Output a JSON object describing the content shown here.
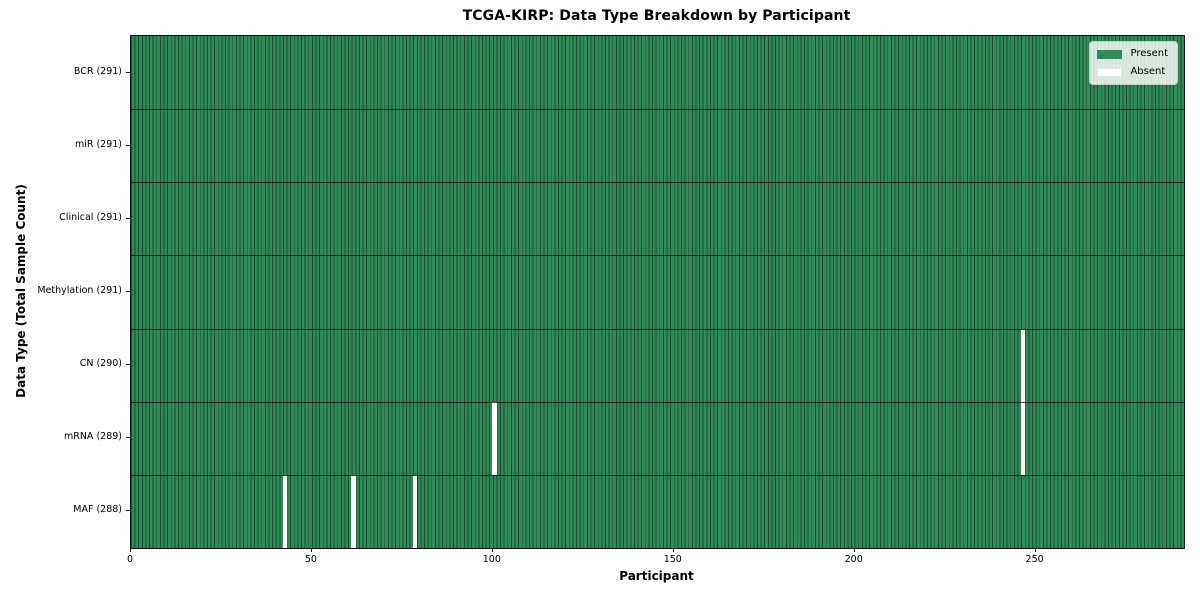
{
  "chart_data": {
    "type": "heatmap",
    "title": "TCGA-KIRP: Data Type Breakdown by Participant",
    "xlabel": "Participant",
    "ylabel": "Data Type (Total Sample Count)",
    "n_participants": 291,
    "x_ticks": [
      0,
      50,
      100,
      150,
      200,
      250
    ],
    "legend": [
      {
        "label": "Present",
        "color": "#2e8b57"
      },
      {
        "label": "Absent",
        "color": "#ffffff"
      }
    ],
    "rows": [
      {
        "label": "BCR (291)",
        "data_type": "BCR",
        "present_count": 291,
        "absent_participants": []
      },
      {
        "label": "miR (291)",
        "data_type": "miR",
        "present_count": 291,
        "absent_participants": []
      },
      {
        "label": "Clinical (291)",
        "data_type": "Clinical",
        "present_count": 291,
        "absent_participants": []
      },
      {
        "label": "Methylation (291)",
        "data_type": "Methylation",
        "present_count": 291,
        "absent_participants": []
      },
      {
        "label": "CN (290)",
        "data_type": "CN",
        "present_count": 290,
        "absent_participants": [
          246
        ]
      },
      {
        "label": "mRNA (289)",
        "data_type": "mRNA",
        "present_count": 289,
        "absent_participants": [
          100,
          246
        ]
      },
      {
        "label": "MAF (288)",
        "data_type": "MAF",
        "present_count": 288,
        "absent_participants": [
          42,
          61,
          78
        ]
      }
    ],
    "colors": {
      "present": "#2e8b57",
      "absent": "#ffffff",
      "cell_edge": "rgba(0,0,0,0.45)",
      "row_separator": "rgba(10,10,10,0.8)"
    },
    "layout": {
      "grid": "per-cell vertical edges",
      "legend_position": "upper right"
    }
  }
}
